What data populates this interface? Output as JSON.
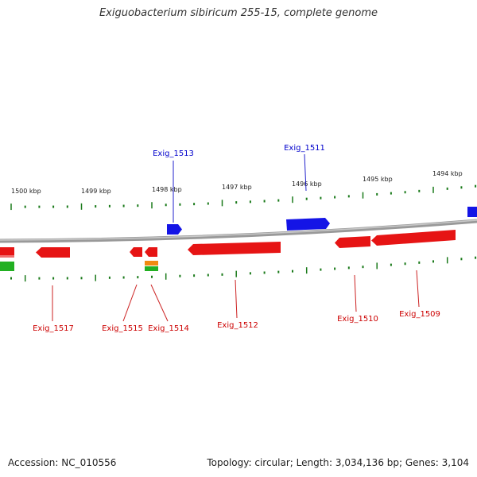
{
  "title": "Exiguobacterium sibiricum 255-15, complete genome",
  "footer": {
    "accession": "Accession: NC_010556",
    "summary": "Topology: circular; Length: 3,034,136 bp; Genes: 3,104"
  },
  "colors": {
    "forward_gene": "#1010e0",
    "reverse_gene": "#e01010",
    "rna": "#22aa22",
    "orange_feature": "#f08a10",
    "tick": "#1a7a1a",
    "backbone": "#888888",
    "forward_label": "#0000cc",
    "reverse_label": "#cc0000"
  },
  "scale_labels": [
    "1500 kbp",
    "1499 kbp",
    "1498 kbp",
    "1497 kbp",
    "1496 kbp",
    "1495 kbp",
    "1494 kbp"
  ],
  "genes": {
    "forward": [
      {
        "label": "Exig_1513"
      },
      {
        "label": "Exig_1511"
      }
    ],
    "reverse": [
      {
        "label": "Exig_1517"
      },
      {
        "label": "Exig_1515"
      },
      {
        "label": "Exig_1514"
      },
      {
        "label": "Exig_1512"
      },
      {
        "label": "Exig_1510"
      },
      {
        "label": "Exig_1509"
      }
    ]
  }
}
